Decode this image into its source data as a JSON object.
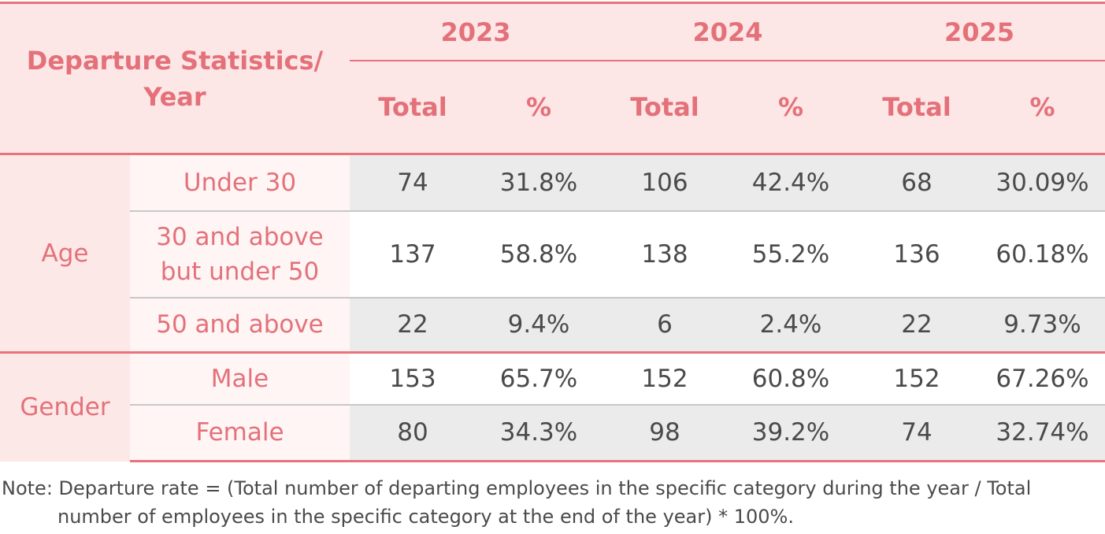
{
  "table": {
    "header_label": "Departure Statistics/ Year",
    "years": [
      "2023",
      "2024",
      "2025"
    ],
    "col_total": "Total",
    "col_pct": "%",
    "groups": [
      {
        "label": "Age",
        "rows": [
          {
            "category": "Under 30",
            "values": [
              "74",
              "31.8%",
              "106",
              "42.4%",
              "68",
              "30.09%"
            ]
          },
          {
            "category": "30 and above but under 50",
            "values": [
              "137",
              "58.8%",
              "138",
              "55.2%",
              "136",
              "60.18%"
            ]
          },
          {
            "category": "50 and above",
            "values": [
              "22",
              "9.4%",
              "6",
              "2.4%",
              "22",
              "9.73%"
            ]
          }
        ]
      },
      {
        "label": "Gender",
        "rows": [
          {
            "category": "Male",
            "values": [
              "153",
              "65.7%",
              "152",
              "60.8%",
              "152",
              "67.26%"
            ]
          },
          {
            "category": "Female",
            "values": [
              "80",
              "34.3%",
              "98",
              "39.2%",
              "74",
              "32.74%"
            ]
          }
        ]
      }
    ]
  },
  "note": {
    "line1": "Note: Departure rate = (Total number of departing employees in the specific category during the year / Total",
    "line2": "number of employees in the specific category at the end of the year) * 100%."
  },
  "colors": {
    "accent": "#e4717a",
    "header_bg": "#fce6e6",
    "row_gray": "#ebebeb",
    "text": "#4a4a4a"
  }
}
